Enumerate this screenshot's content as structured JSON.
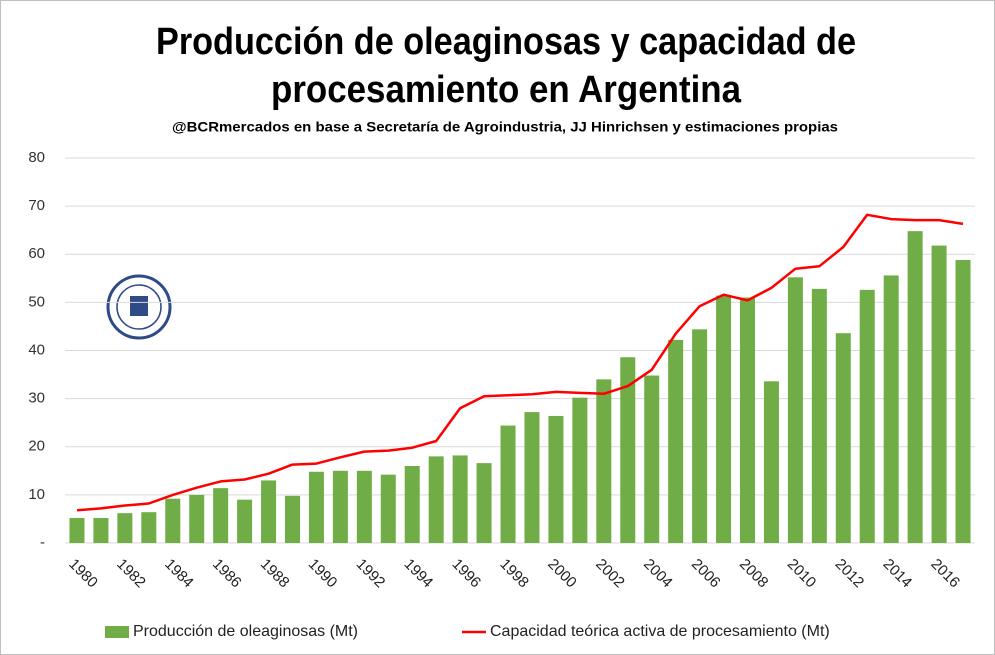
{
  "chart_data": {
    "type": "bar",
    "title": [
      "Producción de oleaginosas y capacidad de",
      "procesamiento en Argentina"
    ],
    "subtitle": "@BCRmercados en base a Secretaría de Agroindustria, JJ Hinrichsen y estimaciones propias",
    "categories": [
      "1980",
      null,
      "1982",
      null,
      "1984",
      null,
      "1986",
      null,
      "1988",
      null,
      "1990",
      null,
      "1992",
      null,
      "1994",
      null,
      "1996",
      null,
      "1998",
      null,
      "2000",
      null,
      "2002",
      null,
      "2004",
      null,
      "2006",
      null,
      "2008",
      null,
      "2010",
      null,
      "2012",
      null,
      "2014",
      null,
      "2016",
      null
    ],
    "series": [
      {
        "name": "Producción de oleaginosas (Mt)",
        "type": "bar",
        "color": "#70ad47",
        "values": [
          5.2,
          5.2,
          6.2,
          6.4,
          9.2,
          10,
          11.4,
          9,
          13,
          9.8,
          14.8,
          15,
          15,
          14.2,
          16,
          18,
          18.2,
          16.6,
          24.4,
          27.2,
          26.4,
          30.2,
          34,
          38.6,
          34.8,
          42.2,
          44.4,
          51.4,
          51,
          33.6,
          55.2,
          52.8,
          43.6,
          52.6,
          55.6,
          64.8,
          61.8,
          58.8
        ]
      },
      {
        "name": "Capacidad teórica activa de procesamiento (Mt)",
        "type": "line",
        "color": "#ff0000",
        "values": [
          6.8,
          7.2,
          7.8,
          8.2,
          10,
          11.5,
          12.8,
          13.2,
          14.4,
          16.3,
          16.5,
          17.8,
          19,
          19.2,
          19.8,
          21.2,
          28,
          30.5,
          30.7,
          30.9,
          31.4,
          31.2,
          31,
          32.6,
          36,
          43.5,
          49.2,
          51.6,
          50.4,
          53,
          57,
          57.5,
          61.5,
          68.2,
          67.3,
          67.1,
          67.1,
          66.3
        ]
      }
    ],
    "ylim": [
      0,
      80
    ],
    "yticks": [
      {
        "value": 0,
        "label": "-"
      },
      10,
      20,
      30,
      40,
      50,
      60,
      70,
      80
    ],
    "grid": true,
    "legend": "bottom"
  }
}
